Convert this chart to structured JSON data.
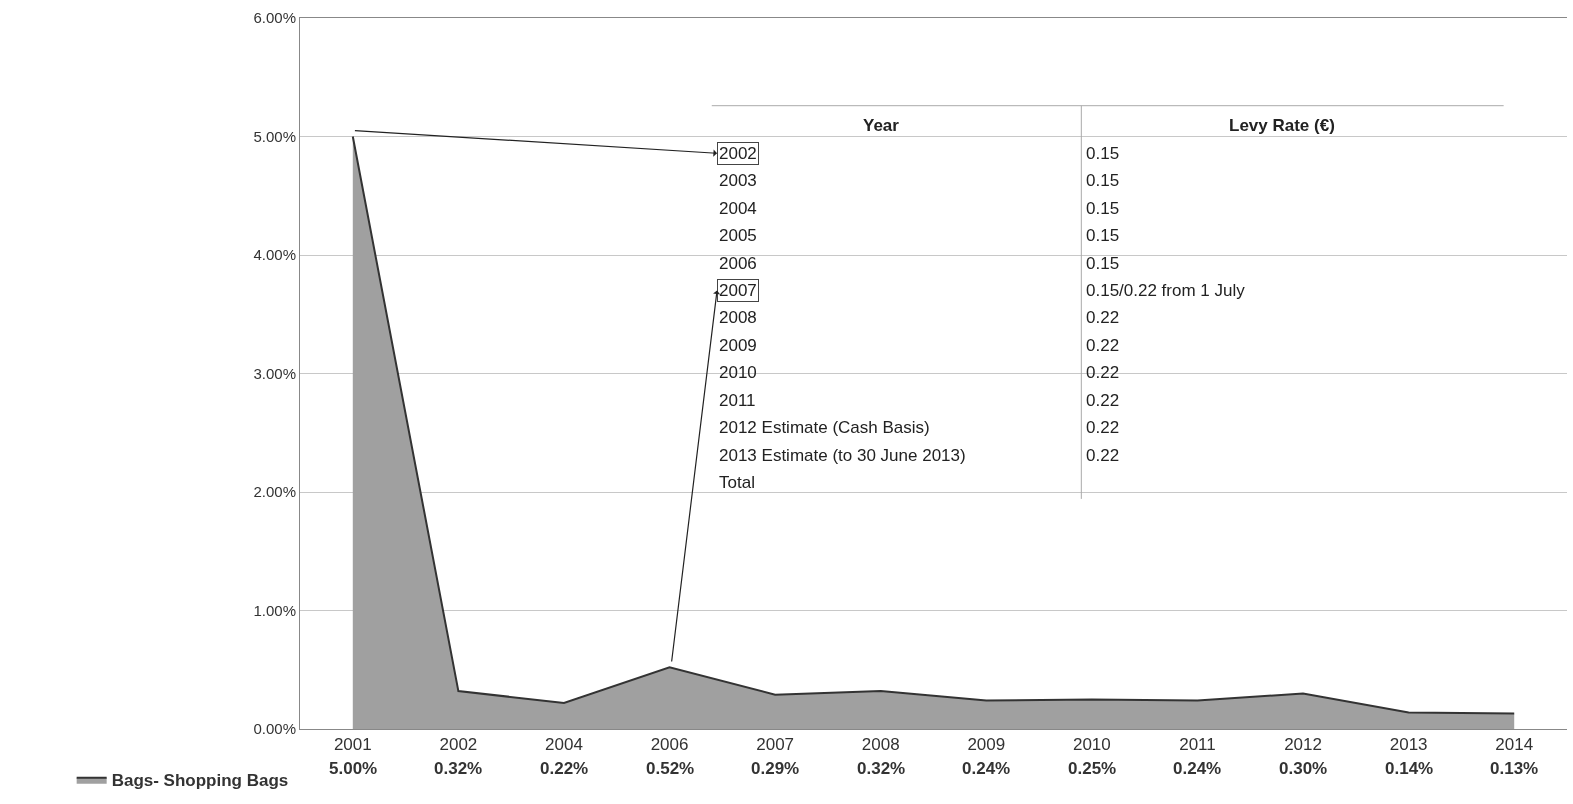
{
  "chart_data": {
    "type": "area",
    "categories": [
      "2001",
      "2002",
      "2004",
      "2006",
      "2007",
      "2008",
      "2009",
      "2010",
      "2011",
      "2012",
      "2013",
      "2014"
    ],
    "series": [
      {
        "name": "Bags- Shopping Bags",
        "color": "#a0a0a0",
        "values": [
          5.0,
          0.32,
          0.22,
          0.52,
          0.29,
          0.32,
          0.24,
          0.25,
          0.24,
          0.3,
          0.14,
          0.13
        ],
        "value_labels": [
          "5.00%",
          "0.32%",
          "0.22%",
          "0.52%",
          "0.29%",
          "0.32%",
          "0.24%",
          "0.25%",
          "0.24%",
          "0.30%",
          "0.14%",
          "0.13%"
        ]
      }
    ],
    "ylim": [
      0,
      6
    ],
    "yticks": [
      {
        "value": 0,
        "label": "0.00%"
      },
      {
        "value": 1,
        "label": "1.00%"
      },
      {
        "value": 2,
        "label": "2.00%"
      },
      {
        "value": 3,
        "label": "3.00%"
      },
      {
        "value": 4,
        "label": "4.00%"
      },
      {
        "value": 5,
        "label": "5.00%"
      },
      {
        "value": 6,
        "label": "6.00%"
      }
    ],
    "grid": "y",
    "legend": "bottom left",
    "annotations": [
      "Year",
      "Levy Rate (€)",
      "2002",
      "0.15",
      "2003",
      "0.15",
      "2004",
      "0.15",
      "2005",
      "0.15",
      "2006",
      "0.15",
      "2007",
      "0.15/0.22 from 1 July",
      "2008",
      "0.22",
      "2009",
      "0.22",
      "2010",
      "0.22",
      "2011",
      "0.22",
      "2012 Estimate (Cash Basis)",
      "0.22",
      "2013 Estimate (to 30 June 2013)",
      "0.22",
      "Total"
    ]
  }
}
